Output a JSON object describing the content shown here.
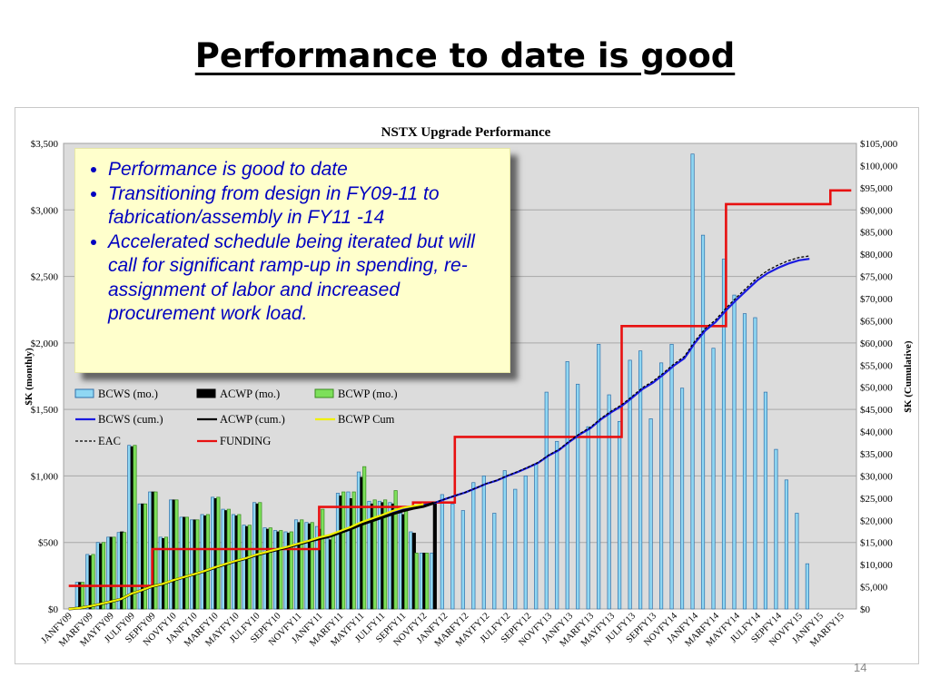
{
  "slide": {
    "title": "Performance to date is good",
    "page_number": "14"
  },
  "callout": {
    "bullets": [
      "Performance is good to date",
      "Transitioning from design in FY09-11 to fabrication/assembly in FY11 -14",
      "Accelerated schedule being iterated but will call for significant ramp-up in spending, re-assignment of labor and increased procurement work load."
    ]
  },
  "chart_data": {
    "type": "bar",
    "title": "NSTX Upgrade Performance",
    "ylabel_left": "$K (monthly)",
    "ylabel_right": "$K (Cumulative)",
    "ylim_left": [
      0,
      3500
    ],
    "ylim_right": [
      0,
      105000
    ],
    "left_ticks": [
      "$0",
      "$500",
      "$1,000",
      "$1,500",
      "$2,000",
      "$2,500",
      "$3,000",
      "$3,500"
    ],
    "right_ticks": [
      "$0",
      "$5,000",
      "$10,000",
      "$15,000",
      "$20,000",
      "$25,000",
      "$30,000",
      "$35,000",
      "$40,000",
      "$45,000",
      "$50,000",
      "$55,000",
      "$60,000",
      "$65,000",
      "$70,000",
      "$75,000",
      "$80,000",
      "$85,000",
      "$90,000",
      "$95,000",
      "$100,000",
      "$105,000"
    ],
    "grid": true,
    "legend_placement": "left-middle",
    "months_count": 76,
    "start_month": "JANFY09",
    "x_tick_labels": [
      "JANFY09",
      "MARFY09",
      "MAYFY09",
      "JULFY09",
      "SEPFY09",
      "NOVFY10",
      "JANFY10",
      "MARFY10",
      "MAYFY10",
      "JULFY10",
      "SEPFY10",
      "NOVFY11",
      "JANFY11",
      "MARFY11",
      "MAYFY11",
      "JULFY11",
      "SEPFY11",
      "NOVFY12",
      "JANFY12",
      "MARFY12",
      "MAYFY12",
      "JULFY12",
      "SEPFY12",
      "NOVFY13",
      "JANFY13",
      "MARFY13",
      "MAYFY13",
      "JULFY13",
      "SEPFY13",
      "NOVFY14",
      "JANFY14",
      "MARFY14",
      "MAYFY14",
      "JULFY14",
      "SEPFY14",
      "NOVFY15",
      "JANFY15",
      "MARFY15"
    ],
    "legend": [
      {
        "name": "BCWS (mo.)",
        "kind": "bar",
        "color": "#8fd7f3",
        "border": "#2f6fa8"
      },
      {
        "name": "ACWP (mo.)",
        "kind": "bar",
        "color": "#000000",
        "border": "#000000"
      },
      {
        "name": "BCWP (mo.)",
        "kind": "bar",
        "color": "#7de05a",
        "border": "#3a8a20"
      },
      {
        "name": "BCWS (cum.)",
        "kind": "line",
        "color": "#1a1ae0"
      },
      {
        "name": "ACWP (cum.)",
        "kind": "line",
        "color": "#000000"
      },
      {
        "name": "BCWP Cum",
        "kind": "line",
        "color": "#f0f000"
      },
      {
        "name": "EAC",
        "kind": "dashed",
        "color": "#000000"
      },
      {
        "name": "FUNDING",
        "kind": "line",
        "color": "#e81010"
      }
    ],
    "series": [
      {
        "name": "BCWS (mo.)",
        "values": [
          0,
          200,
          410,
          500,
          540,
          575,
          1230,
          790,
          880,
          540,
          820,
          690,
          670,
          710,
          840,
          750,
          710,
          630,
          800,
          610,
          590,
          580,
          670,
          650,
          620,
          530,
          870,
          880,
          1030,
          810,
          810,
          800,
          720,
          580,
          420,
          420,
          860,
          790,
          740,
          950,
          1000,
          720,
          1040,
          900,
          1000,
          1090,
          1630,
          1260,
          1860,
          1690,
          1370,
          1990,
          1610,
          1410,
          1870,
          1940,
          1430,
          1850,
          1990,
          1660,
          3420,
          2810,
          1960,
          2630,
          2360,
          2220,
          2190,
          1630,
          1200,
          970,
          720,
          340,
          0,
          0,
          0,
          0
        ]
      },
      {
        "name": "ACWP (mo.)",
        "values": [
          0,
          200,
          400,
          490,
          540,
          580,
          1220,
          790,
          880,
          530,
          820,
          690,
          670,
          700,
          830,
          740,
          700,
          620,
          790,
          600,
          580,
          570,
          650,
          640,
          600,
          520,
          850,
          830,
          990,
          790,
          800,
          790,
          710,
          570,
          420,
          800
        ]
      },
      {
        "name": "BCWP (mo.)",
        "values": [
          0,
          200,
          410,
          500,
          540,
          575,
          1230,
          790,
          880,
          540,
          820,
          690,
          670,
          710,
          840,
          750,
          710,
          630,
          800,
          610,
          590,
          580,
          670,
          650,
          750,
          560,
          880,
          880,
          1070,
          820,
          820,
          890,
          740,
          420,
          420
        ]
      },
      {
        "name": "BCWS (cum.)",
        "values": [
          0,
          200,
          610,
          1110,
          1650,
          2225,
          3455,
          4245,
          5125,
          5665,
          6485,
          7175,
          7845,
          8555,
          9395,
          10145,
          10855,
          11485,
          12285,
          12895,
          13485,
          14065,
          14735,
          15385,
          16005,
          16535,
          17405,
          18285,
          19315,
          20125,
          20935,
          21735,
          22455,
          23035,
          23455,
          23875,
          24735,
          25525,
          26265,
          27215,
          28215,
          28935,
          29975,
          30875,
          31875,
          32965,
          34595,
          35855,
          37715,
          39405,
          40775,
          42765,
          44375,
          45785,
          47655,
          49595,
          51025,
          52875,
          54865,
          56525,
          59945,
          62755,
          64715,
          67345,
          69705,
          71925,
          74115,
          75745,
          76945,
          77915,
          78635,
          78975
        ]
      },
      {
        "name": "ACWP (cum.)",
        "values": [
          0,
          200,
          600,
          1090,
          1630,
          2210,
          3430,
          4220,
          5100,
          5630,
          6450,
          7140,
          7810,
          8510,
          9340,
          10080,
          10780,
          11400,
          12190,
          12790,
          13370,
          13940,
          14590,
          15230,
          15830,
          16350,
          17200,
          18030,
          19020,
          19810,
          20610,
          21400,
          22110,
          22680,
          23100,
          23900
        ]
      },
      {
        "name": "BCWP Cum",
        "values": [
          0,
          200,
          610,
          1110,
          1650,
          2225,
          3455,
          4245,
          5125,
          5665,
          6485,
          7175,
          7845,
          8555,
          9395,
          10145,
          10855,
          11485,
          12285,
          12895,
          13485,
          14065,
          14735,
          15385,
          16135,
          16695,
          17575,
          18455,
          19525,
          20345,
          21165,
          22055,
          22795,
          23215,
          23635
        ]
      },
      {
        "name": "EAC",
        "values": [
          0,
          200,
          600,
          1090,
          1630,
          2210,
          3430,
          4220,
          5100,
          5630,
          6450,
          7140,
          7810,
          8510,
          9340,
          10080,
          10780,
          11400,
          12190,
          12790,
          13370,
          13940,
          14590,
          15230,
          15830,
          16350,
          17200,
          18030,
          19020,
          19810,
          20610,
          21400,
          22110,
          22680,
          23100,
          23900,
          24760,
          25550,
          26300,
          27260,
          28270,
          29000,
          30050,
          30960,
          31970,
          33070,
          34720,
          36000,
          37880,
          39590,
          40970,
          42990,
          44620,
          46050,
          47940,
          49900,
          51350,
          53220,
          55240,
          56920,
          60380,
          63220,
          65200,
          67860,
          70250,
          72500,
          74710,
          76360,
          77570,
          78550,
          79280,
          79620
        ]
      },
      {
        "name": "FUNDING",
        "values": [
          5200,
          5200,
          5200,
          5200,
          5200,
          5200,
          5200,
          5200,
          13500,
          13500,
          13500,
          13500,
          13500,
          13500,
          13500,
          13500,
          13500,
          13500,
          13500,
          13500,
          13500,
          13500,
          13500,
          13500,
          23000,
          23000,
          23000,
          23000,
          23000,
          23000,
          23000,
          23000,
          23000,
          24000,
          24000,
          24000,
          24000,
          38800,
          38800,
          38800,
          38800,
          38800,
          38800,
          38800,
          38800,
          38800,
          38800,
          38800,
          38800,
          38800,
          38800,
          38800,
          38800,
          63800,
          63800,
          63800,
          63800,
          63800,
          63800,
          63800,
          63800,
          63800,
          63800,
          91300,
          91300,
          91300,
          91300,
          91300,
          91300,
          91300,
          91300,
          91300,
          91300,
          94400,
          94400,
          94400
        ]
      }
    ]
  }
}
